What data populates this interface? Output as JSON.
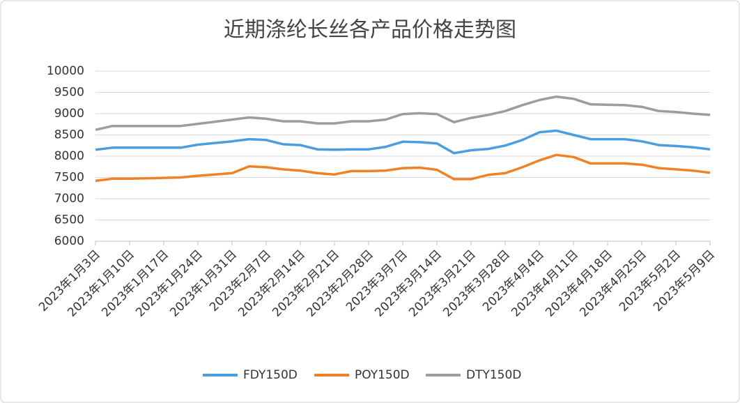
{
  "chart_data": {
    "type": "line",
    "title": "近期涤纶长丝各产品价格走势图",
    "categories": [
      "2023年1月3日",
      null,
      "2023年1月10日",
      null,
      "2023年1月17日",
      null,
      "2023年1月24日",
      null,
      "2023年1月31日",
      null,
      "2023年2月7日",
      null,
      "2023年2月14日",
      null,
      "2023年2月21日",
      null,
      "2023年2月28日",
      null,
      "2023年3月7日",
      null,
      "2023年3月14日",
      null,
      "2023年3月21日",
      null,
      "2023年3月28日",
      null,
      "2023年4月4日",
      null,
      "2023年4月11日",
      null,
      "2023年4月18日",
      null,
      "2023年4月25日",
      null,
      "2023年5月2日",
      null,
      "2023年5月9日"
    ],
    "series": [
      {
        "name": "FDY150D",
        "color": "#4a9ee0",
        "values": [
          8150,
          8200,
          8200,
          8200,
          8200,
          8200,
          8270,
          8310,
          8350,
          8400,
          8380,
          8280,
          8260,
          8160,
          8150,
          8160,
          8160,
          8220,
          8340,
          8330,
          8300,
          8070,
          8140,
          8170,
          8250,
          8380,
          8560,
          8600,
          8500,
          8400,
          8400,
          8400,
          8350,
          8260,
          8240,
          8210,
          8160
        ]
      },
      {
        "name": "POY150D",
        "color": "#f08124",
        "values": [
          7420,
          7470,
          7470,
          7480,
          7490,
          7500,
          7540,
          7570,
          7600,
          7760,
          7740,
          7690,
          7660,
          7600,
          7570,
          7650,
          7650,
          7660,
          7720,
          7730,
          7680,
          7460,
          7460,
          7560,
          7600,
          7740,
          7900,
          8030,
          7980,
          7830,
          7830,
          7830,
          7800,
          7720,
          7690,
          7660,
          7610
        ]
      },
      {
        "name": "DTY150D",
        "color": "#9d9d9d",
        "values": [
          8620,
          8710,
          8710,
          8710,
          8710,
          8710,
          8760,
          8810,
          8860,
          8910,
          8880,
          8820,
          8820,
          8770,
          8770,
          8820,
          8820,
          8860,
          8990,
          9010,
          8990,
          8800,
          8900,
          8970,
          9060,
          9200,
          9320,
          9400,
          9350,
          9220,
          9210,
          9200,
          9160,
          9060,
          9040,
          9000,
          8970
        ]
      }
    ],
    "ylim": [
      6000,
      10000
    ],
    "yticks": [
      6000,
      6500,
      7000,
      7500,
      8000,
      8500,
      9000,
      9500,
      10000
    ],
    "grid": true,
    "legend": "bottom"
  }
}
